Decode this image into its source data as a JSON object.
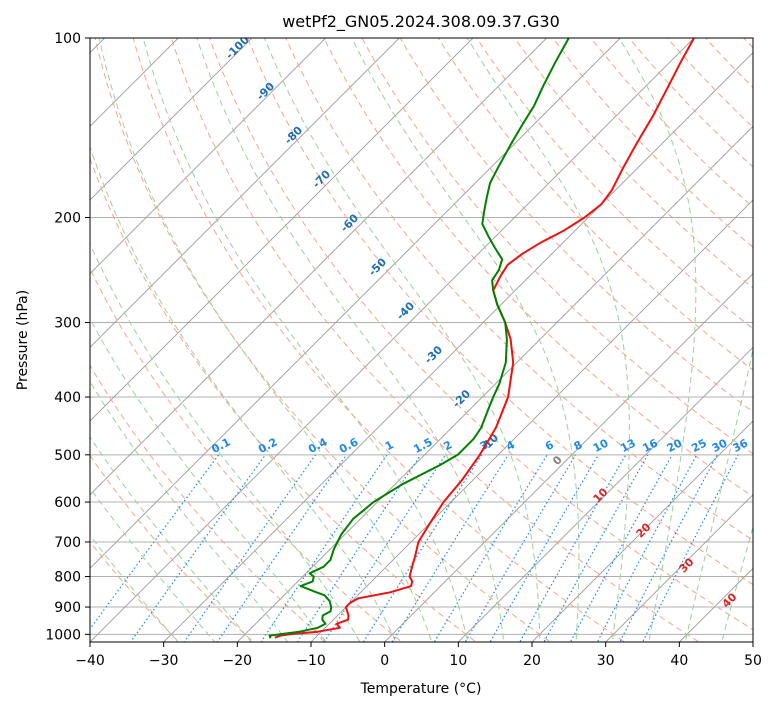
{
  "chart_data": {
    "type": "line",
    "subtype": "skew-T log-p diagram",
    "title": "wetPf2_GN05.2024.308.09.37.G30",
    "xlabel": "Temperature (°C)",
    "ylabel": "Pressure (hPa)",
    "xlim": [
      -40,
      50
    ],
    "ylim": [
      1030,
      100
    ],
    "y_scale": "log",
    "grid": true,
    "x_ticks": [
      "−40",
      "−30",
      "−20",
      "−10",
      "0",
      "10",
      "20",
      "30",
      "40",
      "50"
    ],
    "y_ticks": [
      "100",
      "200",
      "300",
      "400",
      "500",
      "600",
      "700",
      "800",
      "900",
      "1000"
    ],
    "y_tick_values": [
      100,
      200,
      300,
      400,
      500,
      600,
      700,
      800,
      900,
      1000
    ],
    "isotherms": [
      -160,
      -150,
      -140,
      -130,
      -120,
      -110,
      -100,
      -90,
      -80,
      -70,
      -60,
      -50,
      -40,
      -30,
      -20,
      -10,
      0,
      10,
      20,
      30,
      40,
      50
    ],
    "dry_adiabat_labels": [
      "-100",
      "-90",
      "-80",
      "-70",
      "-60",
      "-50",
      "-40",
      "-30",
      "-20",
      "-10"
    ],
    "dry_adiabat_values": [
      -100,
      -90,
      -80,
      -70,
      -60,
      -50,
      -40,
      -30,
      -20,
      -10
    ],
    "moist_adiabat_labels": [
      "0",
      "10",
      "20",
      "30",
      "40"
    ],
    "moist_adiabat_values": [
      0,
      10,
      20,
      30,
      40
    ],
    "mixing_ratio_labels": [
      "0.1",
      "0.2",
      "0.4",
      "0.6",
      "1",
      "1.5",
      "2",
      "3",
      "4",
      "6",
      "8",
      "10",
      "13",
      "16",
      "20",
      "25",
      "30",
      "36"
    ],
    "mixing_ratio_values": [
      0.1,
      0.2,
      0.4,
      0.6,
      1,
      1.5,
      2,
      3,
      4,
      6,
      8,
      10,
      13,
      16,
      20,
      25,
      30,
      36
    ],
    "series": [
      {
        "color": "#ee1111",
        "points": [
          [
            1013,
            -15.5
          ],
          [
            1005,
            -15.0
          ],
          [
            1000,
            -14.0
          ],
          [
            990,
            -10.5
          ],
          [
            975,
            -8.0
          ],
          [
            960,
            -9.0
          ],
          [
            945,
            -8.0
          ],
          [
            930,
            -8.5
          ],
          [
            920,
            -9.0
          ],
          [
            900,
            -10.0
          ],
          [
            885,
            -10.0
          ],
          [
            870,
            -9.5
          ],
          [
            850,
            -6.0
          ],
          [
            830,
            -4.0
          ],
          [
            815,
            -4.5
          ],
          [
            800,
            -5.5
          ],
          [
            770,
            -6.5
          ],
          [
            740,
            -7.5
          ],
          [
            700,
            -9.0
          ],
          [
            650,
            -10.0
          ],
          [
            600,
            -11.0
          ],
          [
            550,
            -11.5
          ],
          [
            500,
            -12.5
          ],
          [
            450,
            -14.0
          ],
          [
            400,
            -16.5
          ],
          [
            350,
            -20.5
          ],
          [
            320,
            -24.0
          ],
          [
            300,
            -27.0
          ],
          [
            280,
            -30.5
          ],
          [
            265,
            -33.0
          ],
          [
            250,
            -34.0
          ],
          [
            240,
            -34.5
          ],
          [
            230,
            -34.0
          ],
          [
            220,
            -33.0
          ],
          [
            210,
            -31.5
          ],
          [
            200,
            -30.5
          ],
          [
            190,
            -30.0
          ],
          [
            180,
            -30.5
          ],
          [
            165,
            -32.0
          ],
          [
            150,
            -33.5
          ],
          [
            135,
            -35.0
          ],
          [
            120,
            -37.0
          ],
          [
            110,
            -38.5
          ],
          [
            100,
            -40.0
          ]
        ]
      },
      {
        "color": "#008000",
        "points": [
          [
            1015,
            -16.0
          ],
          [
            1005,
            -16.5
          ],
          [
            990,
            -13.0
          ],
          [
            975,
            -11.0
          ],
          [
            960,
            -10.5
          ],
          [
            945,
            -11.5
          ],
          [
            930,
            -12.0
          ],
          [
            915,
            -11.5
          ],
          [
            900,
            -12.0
          ],
          [
            880,
            -13.0
          ],
          [
            860,
            -14.5
          ],
          [
            850,
            -16.0
          ],
          [
            830,
            -19.0
          ],
          [
            815,
            -18.0
          ],
          [
            800,
            -18.5
          ],
          [
            790,
            -19.5
          ],
          [
            770,
            -18.5
          ],
          [
            750,
            -18.5
          ],
          [
            720,
            -19.5
          ],
          [
            680,
            -20.5
          ],
          [
            640,
            -21.0
          ],
          [
            600,
            -20.5
          ],
          [
            560,
            -19.0
          ],
          [
            520,
            -16.5
          ],
          [
            500,
            -15.5
          ],
          [
            470,
            -15.5
          ],
          [
            450,
            -16.0
          ],
          [
            420,
            -17.5
          ],
          [
            400,
            -18.5
          ],
          [
            380,
            -19.5
          ],
          [
            350,
            -21.5
          ],
          [
            320,
            -24.5
          ],
          [
            300,
            -27.0
          ],
          [
            280,
            -30.5
          ],
          [
            265,
            -33.0
          ],
          [
            255,
            -34.5
          ],
          [
            245,
            -35.0
          ],
          [
            235,
            -36.0
          ],
          [
            225,
            -38.5
          ],
          [
            215,
            -41.0
          ],
          [
            205,
            -43.5
          ],
          [
            195,
            -45.0
          ],
          [
            185,
            -46.5
          ],
          [
            175,
            -48.0
          ],
          [
            165,
            -49.0
          ],
          [
            150,
            -50.5
          ],
          [
            140,
            -51.5
          ],
          [
            130,
            -52.5
          ],
          [
            120,
            -54.0
          ],
          [
            110,
            -55.5
          ],
          [
            100,
            -57.0
          ]
        ]
      }
    ],
    "colors": {
      "temperature": "#ee1111",
      "dewpoint": "#008000",
      "isobar_grid": "#b0b0b0",
      "isotherm": "#9a9a9a",
      "dry_adiabat": "#f2a58c",
      "moist_adiabat": "#9ccf9c",
      "mixing_ratio": "#1e88e5",
      "dry_adiabat_text": "#1f6fb0",
      "moist_adiabat_text": "#d62728",
      "zero_label": "#808080",
      "tan_curve": "#d8c0a0"
    }
  }
}
